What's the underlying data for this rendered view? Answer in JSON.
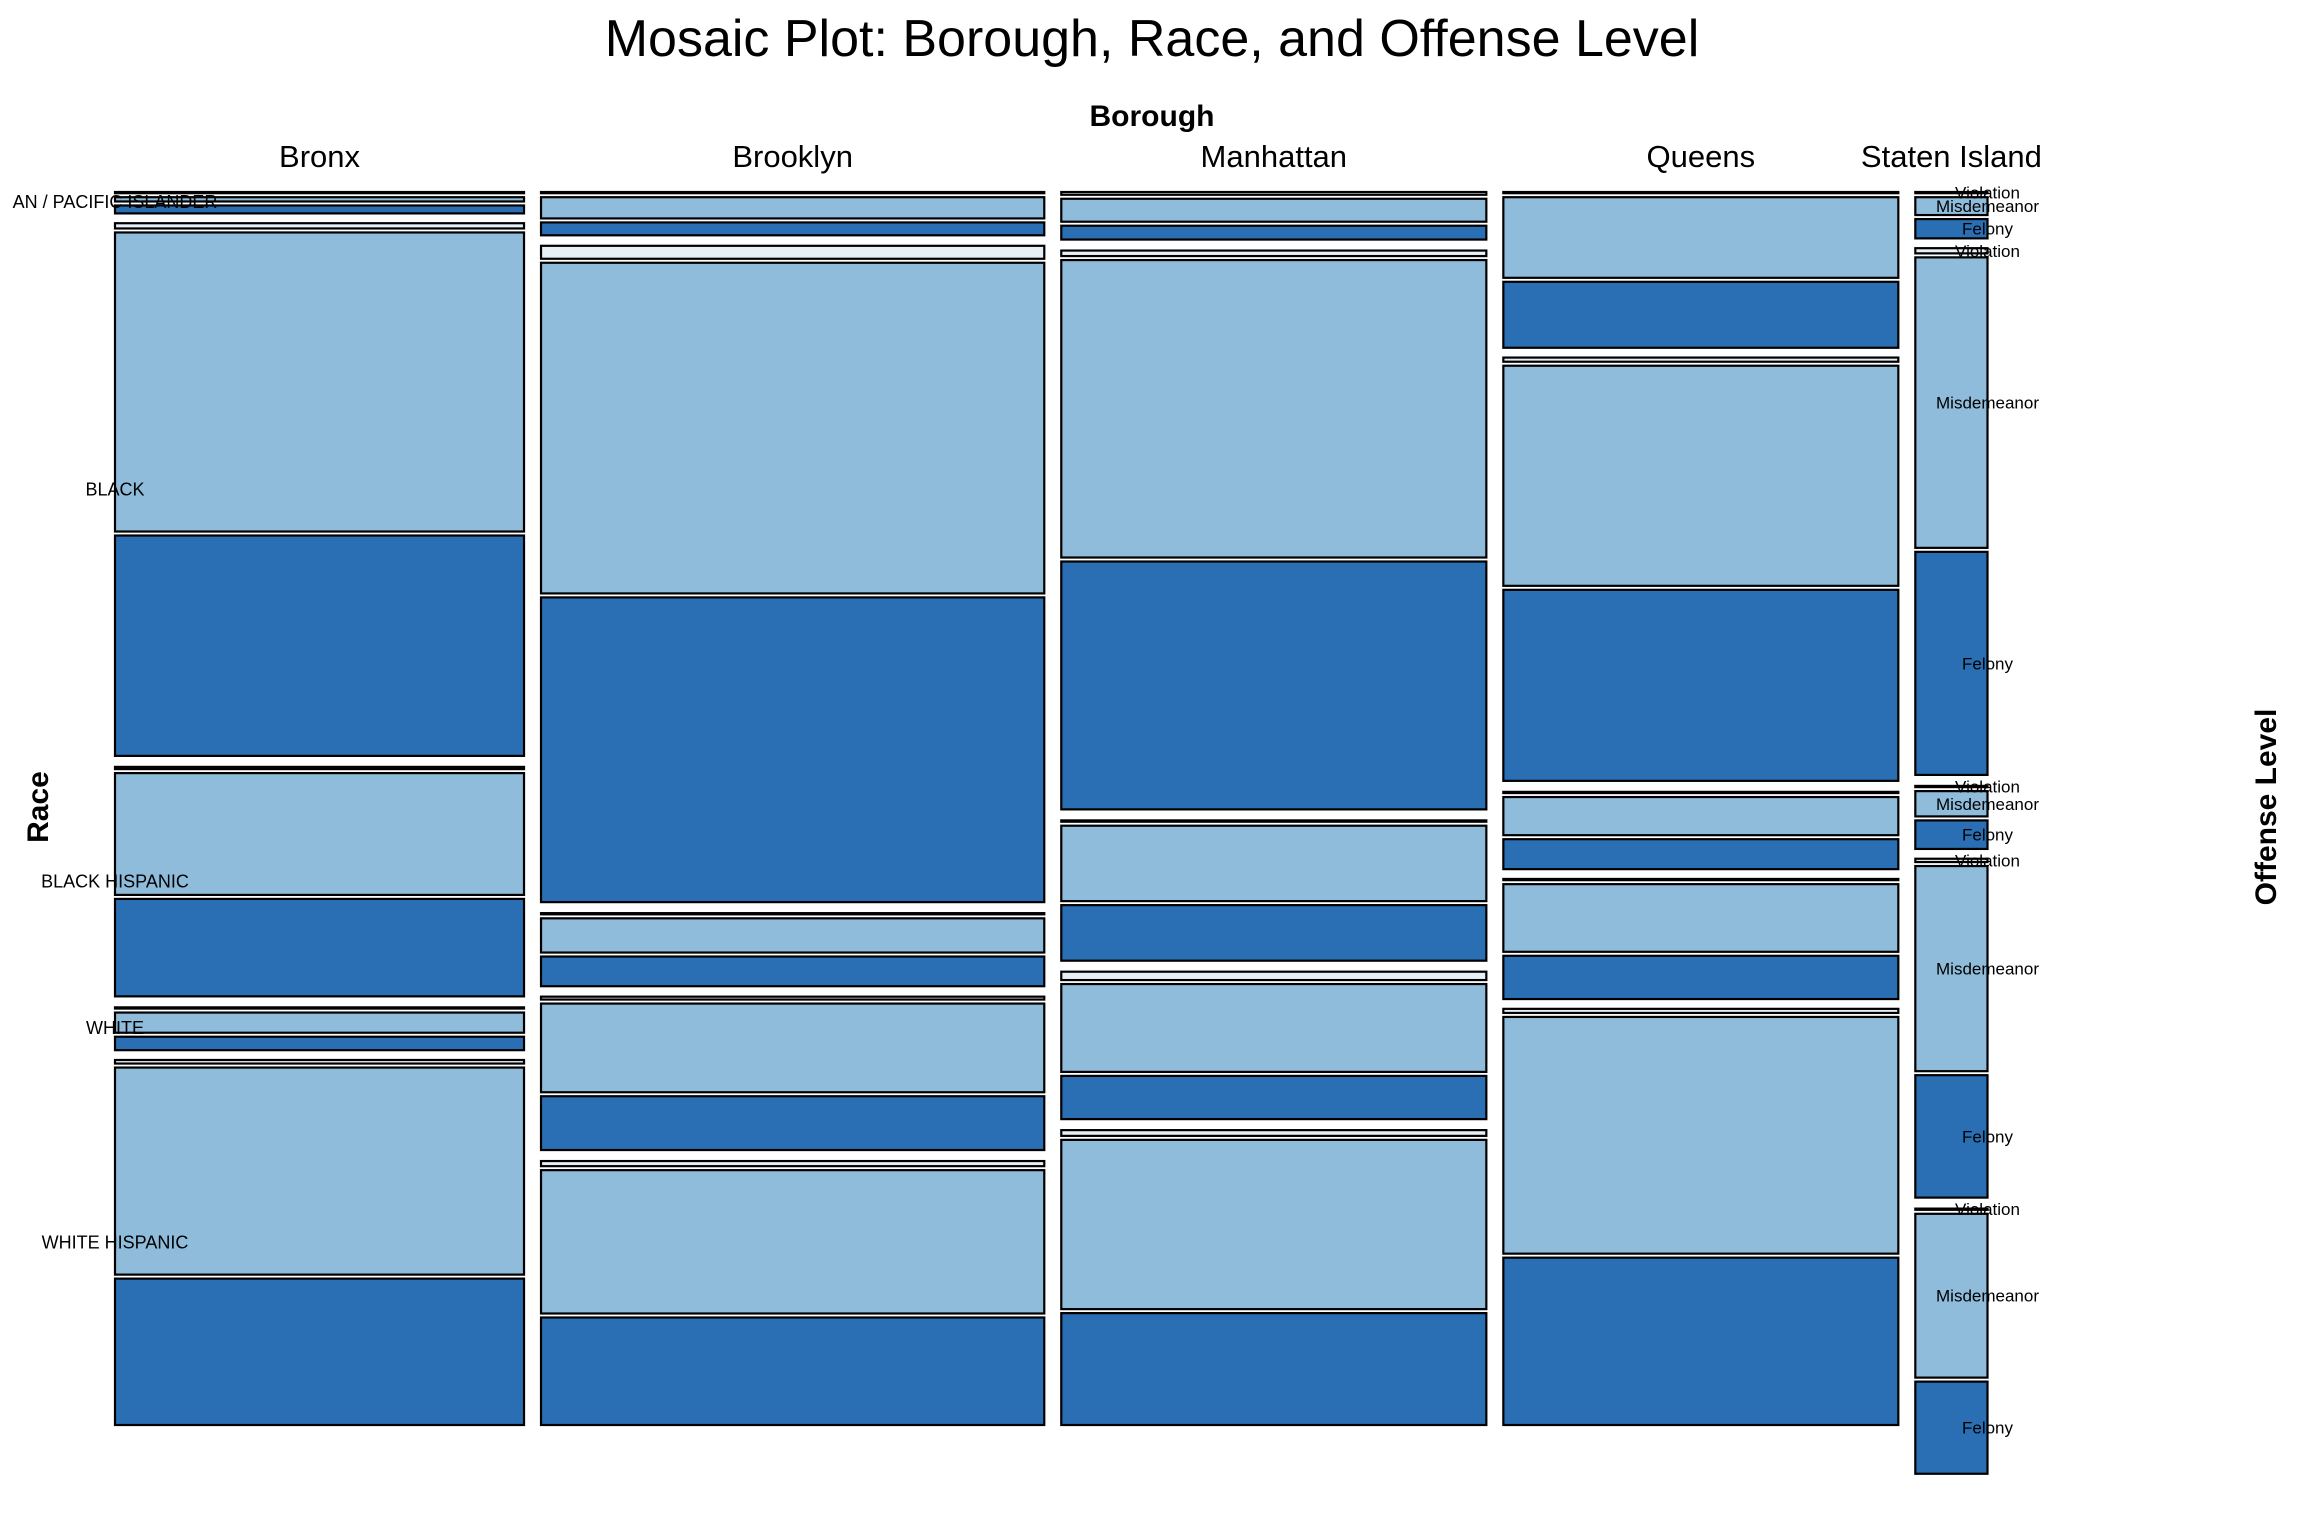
{
  "chart_data": {
    "type": "mosaic",
    "title": "Mosaic Plot: Borough, Race, and Offense Level",
    "column_variable": "Borough",
    "row_variable": "Race",
    "fill_variable": "Offense Level",
    "boroughs": [
      "Bronx",
      "Brooklyn",
      "Manhattan",
      "Queens",
      "Staten Island"
    ],
    "races": [
      "ASIAN / PACIFIC ISLANDER",
      "BLACK",
      "BLACK HISPANIC",
      "WHITE",
      "WHITE HISPANIC"
    ],
    "race_labels_shown": [
      "AN / PACIFIC ISLANDER",
      "BLACK",
      "BLACK HISPANIC",
      "WHITE",
      "WHITE HISPANIC"
    ],
    "offense_levels": [
      "Violation",
      "Misdemeanor",
      "Felony"
    ],
    "borough_share": [
      0.204,
      0.251,
      0.212,
      0.197,
      0.036
    ],
    "race_share_within_borough": {
      "Bronx": [
        0.017,
        0.448,
        0.193,
        0.035,
        0.307
      ],
      "Brooklyn": [
        0.036,
        0.552,
        0.061,
        0.129,
        0.222
      ],
      "Manhattan": [
        0.04,
        0.47,
        0.118,
        0.124,
        0.248
      ],
      "Queens": [
        0.13,
        0.356,
        0.064,
        0.1,
        0.35
      ],
      "Staten Island": [
        0.038,
        0.443,
        0.052,
        0.285,
        0.222
      ]
    },
    "offense_share_within_borough_race": {
      "Bronx": [
        [
          0.0,
          0.35,
          0.65
        ],
        [
          0.01,
          0.57,
          0.42
        ],
        [
          0.01,
          0.55,
          0.44
        ],
        [
          0.0,
          0.6,
          0.4
        ],
        [
          0.01,
          0.58,
          0.41
        ]
      ],
      "Brooklyn": [
        [
          0.02,
          0.61,
          0.37
        ],
        [
          0.02,
          0.51,
          0.47
        ],
        [
          0.01,
          0.53,
          0.46
        ],
        [
          0.02,
          0.61,
          0.37
        ],
        [
          0.02,
          0.56,
          0.42
        ]
      ],
      "Manhattan": [
        [
          0.07,
          0.58,
          0.35
        ],
        [
          0.01,
          0.54,
          0.45
        ],
        [
          0.01,
          0.57,
          0.42
        ],
        [
          0.06,
          0.63,
          0.31
        ],
        [
          0.02,
          0.59,
          0.39
        ]
      ],
      "Queens": [
        [
          0.0,
          0.55,
          0.45
        ],
        [
          0.01,
          0.53,
          0.46
        ],
        [
          0.0,
          0.56,
          0.44
        ],
        [
          0.0,
          0.61,
          0.39
        ],
        [
          0.01,
          0.58,
          0.41
        ]
      ],
      "Staten Island": [
        [
          0.0,
          0.48,
          0.52
        ],
        [
          0.01,
          0.56,
          0.43
        ],
        [
          0.0,
          0.47,
          0.53
        ],
        [
          0.01,
          0.62,
          0.37
        ],
        [
          0.0,
          0.64,
          0.36
        ]
      ]
    },
    "colors": {
      "Violation": "#e7f0f7",
      "Misdemeanor": "#8fbcdb",
      "Felony": "#2a6fb3",
      "outline": "#000000"
    }
  }
}
